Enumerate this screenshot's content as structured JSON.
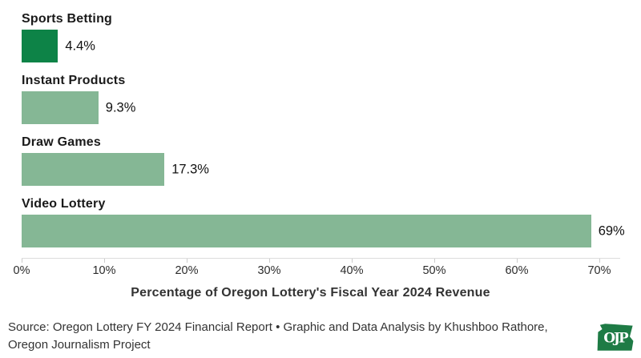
{
  "chart_data": {
    "type": "bar",
    "orientation": "horizontal",
    "categories": [
      "Sports Betting",
      "Instant Products",
      "Draw Games",
      "Video Lottery"
    ],
    "values": [
      4.4,
      9.3,
      17.3,
      69
    ],
    "value_labels": [
      "4.4%",
      "9.3%",
      "17.3%",
      "69%"
    ],
    "title": "",
    "xlabel": "Percentage of Oregon Lottery's Fiscal Year 2024 Revenue",
    "ylabel": "",
    "xlim": [
      0,
      70
    ],
    "x_ticks": [
      "0%",
      "10%",
      "20%",
      "30%",
      "40%",
      "50%",
      "60%",
      "70%"
    ],
    "grid": false,
    "legend_position": "none",
    "bar_colors": [
      "#0d8347",
      "#85b795",
      "#85b795",
      "#85b795"
    ]
  },
  "colors": {
    "highlight_green": "#0d8347",
    "light_green": "#85b795",
    "logo_green": "#1e7b45",
    "axis_line": "#dddddd",
    "text_dark": "#1a1a1a",
    "text_muted": "#333333"
  },
  "footer": {
    "source_text": "Source: Oregon Lottery FY 2024 Financial Report • Graphic and Data Analysis by Khushboo Rathore, Oregon Journalism Project",
    "logo_text": "OJP"
  }
}
